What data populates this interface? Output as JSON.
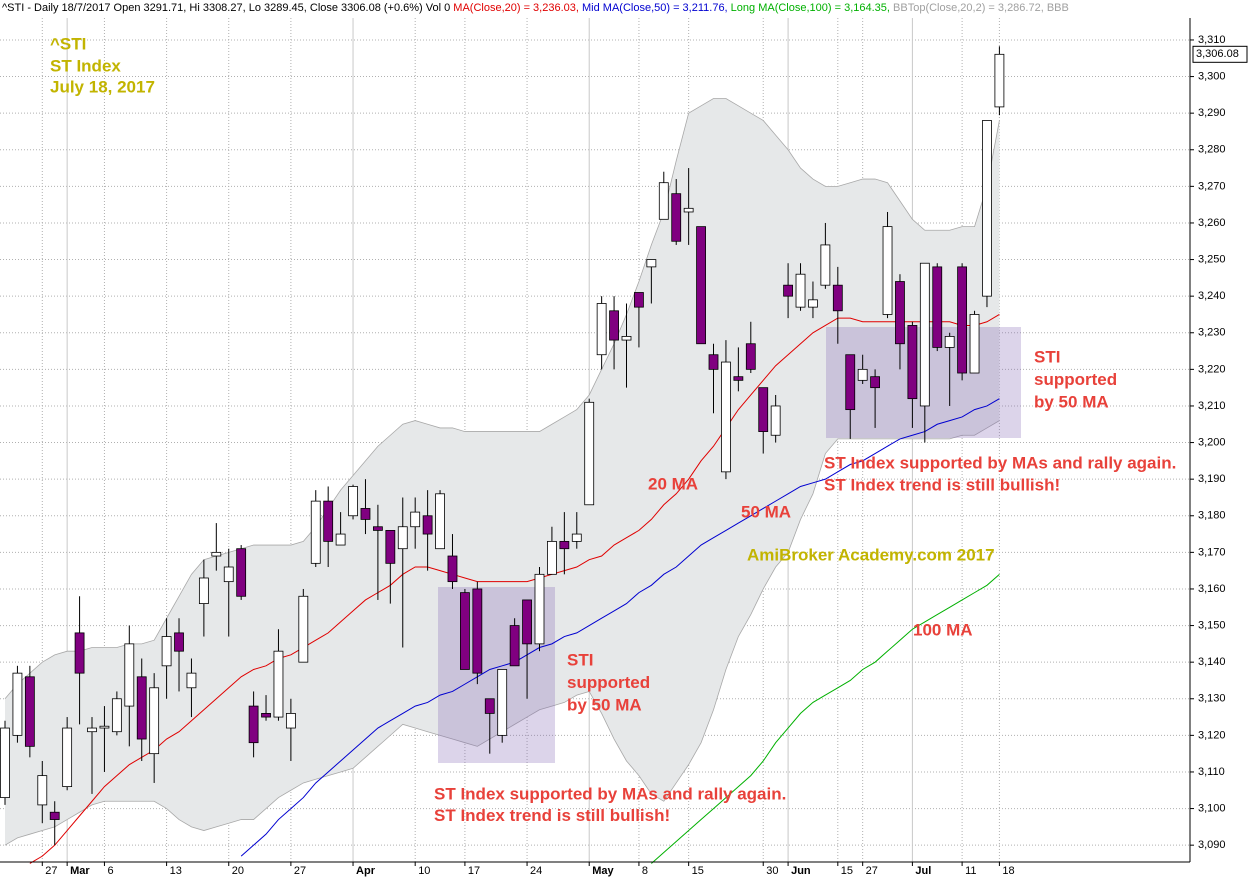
{
  "chart_data": {
    "type": "candlestick",
    "header": [
      {
        "text": "^STI - Daily 18/7/2017 Open 3291.71, Hi 3308.27, Lo 3289.45, Close 3306.08 (+0.6%) Vol 0 ",
        "color": "#000000"
      },
      {
        "text": "MA(Close,20) = 3,236.03, ",
        "color": "#e00000"
      },
      {
        "text": "Mid MA(Close,50) = 3,211.76, ",
        "color": "#0000d0"
      },
      {
        "text": "Long MA(Close,100) = 3,164.35, ",
        "color": "#00b000"
      },
      {
        "text": "BBTop(Close,20,2) = 3,286.72, BBB",
        "color": "#a0a0a0"
      }
    ],
    "title_lines": [
      "^STI",
      "ST Index",
      "July 18, 2017"
    ],
    "title_color": "#c2b400",
    "annotations": [
      {
        "lines": [
          "STI",
          "supported",
          "by 50 MA"
        ],
        "color": "#e8413a"
      },
      {
        "lines": [
          "STI",
          "supported",
          "by 50 MA"
        ],
        "color": "#e8413a"
      },
      {
        "lines": [
          "20 MA"
        ],
        "color": "#e8413a"
      },
      {
        "lines": [
          "50 MA"
        ],
        "color": "#e8413a"
      },
      {
        "lines": [
          "100 MA"
        ],
        "color": "#e8413a"
      },
      {
        "lines": [
          "ST Index supported by MAs and rally again.",
          "ST Index trend is still bullish!"
        ],
        "color": "#e8413a"
      },
      {
        "lines": [
          "ST Index supported by MAs and rally again.",
          "ST Index trend is still bullish!"
        ],
        "color": "#e8413a"
      },
      {
        "lines": [
          "AmiBroker Academy.com  2017"
        ],
        "color": "#c2b400"
      }
    ],
    "categories": [
      null,
      null,
      null,
      "27",
      null,
      "Mar",
      null,
      null,
      "6",
      null,
      null,
      null,
      null,
      "13",
      null,
      null,
      null,
      null,
      "20",
      null,
      null,
      null,
      null,
      "27",
      null,
      null,
      null,
      null,
      "Apr",
      null,
      null,
      null,
      null,
      "10",
      null,
      null,
      null,
      "17",
      null,
      null,
      null,
      null,
      "24",
      null,
      null,
      null,
      null,
      "May",
      null,
      null,
      null,
      "8",
      null,
      null,
      null,
      "15",
      null,
      null,
      null,
      null,
      null,
      "30",
      null,
      "Jun",
      null,
      null,
      null,
      "15",
      null,
      "27",
      null,
      null,
      null,
      "Jul",
      null,
      null,
      null,
      "11",
      null,
      null,
      "18"
    ],
    "open": [
      3103,
      3120,
      3136,
      3101,
      3099,
      3106,
      3148,
      3121,
      3122,
      3121,
      3128,
      3136,
      3115,
      3139,
      3148,
      3133,
      3156,
      3169,
      3162,
      3171,
      3128,
      3126,
      3125,
      3122,
      3140,
      3167,
      3184,
      3172,
      3180,
      3182,
      3177,
      3176,
      3171,
      3177,
      3180,
      3171,
      3169,
      3159,
      3160,
      3130,
      3120,
      3150,
      3157,
      3145,
      3164,
      3173,
      3173,
      3183,
      3224,
      3236,
      3228,
      3241,
      3248,
      3261,
      3268,
      3263,
      3259,
      3224,
      3192,
      3218,
      3227,
      3215,
      3202,
      3243,
      3237,
      3237,
      3243,
      3243,
      3224,
      3217,
      3218,
      3235,
      3244,
      3232,
      3210,
      3248,
      3226,
      3248,
      3219,
      3240,
      3291.71
    ],
    "high": [
      3124,
      3139,
      3139,
      3113,
      3102,
      3125,
      3158,
      3125,
      3128,
      3132,
      3150,
      3141,
      3137,
      3152,
      3152,
      3141,
      3168,
      3178,
      3171,
      3172,
      3132,
      3131,
      3149,
      3130,
      3160,
      3187,
      3188,
      3181,
      3188.5,
      3190,
      3183,
      3176,
      3185,
      3185,
      3187,
      3187,
      3175,
      3160,
      3162,
      3130,
      3138,
      3152,
      3157,
      3166,
      3177,
      3181,
      3181,
      3212,
      3240,
      3240,
      3238,
      3241,
      3250,
      3274,
      3272,
      3275,
      3259,
      3227,
      3228,
      3226,
      3233,
      3215,
      3213,
      3249,
      3249,
      3244,
      3260,
      3248,
      3224,
      3224,
      3220,
      3263,
      3246,
      3233,
      3249,
      3249,
      3230,
      3249,
      3236,
      3288,
      3308.27
    ],
    "low": [
      3101,
      3118,
      3114,
      3096,
      3090,
      3105,
      3123,
      3104,
      3110,
      3120,
      3117,
      3113,
      3107,
      3130,
      3132,
      3125,
      3147,
      3165,
      3147,
      3157,
      3114,
      3124,
      3124,
      3113,
      3140,
      3166,
      3166,
      3172,
      3179,
      3175,
      3157,
      3156,
      3144,
      3171,
      3165,
      3171,
      3160,
      3138,
      3134,
      3115,
      3118,
      3139,
      3130,
      3143,
      3164,
      3164,
      3171,
      3183,
      3220,
      3220,
      3215,
      3226,
      3238,
      3261,
      3254,
      3254,
      3227,
      3208,
      3190,
      3214,
      3219,
      3197,
      3200,
      3234,
      3236,
      3234,
      3242,
      3227,
      3201,
      3216,
      3204,
      3234,
      3220,
      3204,
      3200,
      3225,
      3210,
      3217,
      3219,
      3237,
      3289.45
    ],
    "close": [
      3122,
      3137,
      3117,
      3109,
      3097,
      3122,
      3137,
      3122,
      3122.5,
      3130,
      3145,
      3119,
      3133,
      3147,
      3143,
      3137,
      3163,
      3170,
      3166,
      3158,
      3118,
      3125,
      3143,
      3126,
      3158,
      3184,
      3173,
      3175,
      3188,
      3179,
      3176,
      3167,
      3177,
      3181,
      3175,
      3186,
      3162,
      3138,
      3137,
      3126,
      3138,
      3139,
      3145,
      3164,
      3173,
      3171,
      3175,
      3211,
      3238,
      3228,
      3229,
      3237,
      3250,
      3271,
      3255,
      3264,
      3227,
      3220,
      3222,
      3217,
      3220,
      3203,
      3210,
      3240,
      3246,
      3239,
      3254,
      3236,
      3209,
      3220,
      3215,
      3259,
      3227,
      3212,
      3249,
      3226,
      3229,
      3219,
      3235,
      3288,
      3306.08
    ],
    "last_close_label": "3,306.08",
    "up_color": "#ffffff",
    "down_color": "#800080",
    "band": {
      "color": "#e6e8e9",
      "edge_color": "#a8a8a8",
      "upper": [
        3130,
        3134,
        3137,
        3140,
        3142,
        3143,
        3143,
        3144,
        3144,
        3144,
        3145,
        3145,
        3146,
        3152,
        3158,
        3164,
        3168,
        3169,
        3170,
        3171,
        3172,
        3172,
        3172,
        3172,
        3173,
        3177,
        3182,
        3187,
        3191,
        3195,
        3199,
        3202,
        3205,
        3206,
        3205,
        3204,
        3204,
        3203,
        3203,
        3203,
        3203,
        3203,
        3203,
        3203,
        3205,
        3207,
        3209,
        3213,
        3220,
        3227,
        3235,
        3244,
        3254,
        3263,
        3277,
        3290,
        3292,
        3294,
        3294,
        3292,
        3290,
        3288,
        3284,
        3280,
        3275,
        3272,
        3270,
        3270,
        3271,
        3272,
        3272,
        3271,
        3266,
        3261,
        3258,
        3258,
        3258,
        3259,
        3259,
        3270,
        3288
      ],
      "lower": [
        3090,
        3092,
        3093,
        3094,
        3095,
        3097,
        3099,
        3101,
        3102,
        3102,
        3102,
        3102,
        3102,
        3100,
        3097,
        3095,
        3094,
        3095,
        3096,
        3097,
        3097,
        3100,
        3103,
        3105,
        3107,
        3108,
        3109,
        3110,
        3111,
        3114,
        3117,
        3120,
        3123,
        3122,
        3121,
        3120,
        3119,
        3118,
        3117,
        3119,
        3121,
        3123,
        3125,
        3127,
        3128,
        3129,
        3131,
        3132,
        3126,
        3119,
        3113,
        3109,
        3104,
        3102,
        3107,
        3112,
        3118,
        3127,
        3138,
        3147,
        3153,
        3160,
        3166,
        3170,
        3179,
        3186,
        3197,
        3201,
        3201,
        3201,
        3201,
        3201,
        3201,
        3201,
        3201,
        3201,
        3201,
        3202,
        3202,
        3204,
        3206
      ]
    },
    "series": [
      {
        "color": "#e00000",
        "values": [
          null,
          null,
          3085,
          3087,
          3090,
          3094,
          3098,
          3102,
          3106,
          3109,
          3112,
          3114,
          3116,
          3119,
          3121,
          3124,
          3127,
          3130,
          3133,
          3136,
          3138,
          3139,
          3141,
          3142,
          3144,
          3146,
          3148,
          3151,
          3154,
          3157,
          3159,
          3161,
          3164,
          3166,
          3166,
          3165,
          3164,
          3163,
          3162,
          3162,
          3162,
          3162,
          3162,
          3163,
          3164,
          3165,
          3166,
          3168,
          3169,
          3172,
          3174,
          3176,
          3179,
          3183,
          3186,
          3190,
          3195,
          3199,
          3204,
          3209,
          3213,
          3217,
          3221,
          3224,
          3227,
          3230,
          3232,
          3234,
          3234,
          3233,
          3233,
          3233,
          3233,
          3233,
          3233,
          3233,
          3233,
          3232,
          3232,
          3233,
          3235
        ]
      },
      {
        "color": "#0000d0",
        "values": [
          null,
          null,
          null,
          null,
          null,
          null,
          null,
          null,
          null,
          null,
          null,
          null,
          null,
          null,
          null,
          null,
          null,
          null,
          null,
          3087,
          3090,
          3093,
          3097,
          3100,
          3103,
          3107,
          3110,
          3113,
          3116,
          3119,
          3122,
          3124,
          3126,
          3128,
          3129,
          3131,
          3132,
          3134,
          3136,
          3138,
          3139,
          3140,
          3142,
          3144,
          3145,
          3147,
          3148,
          3150,
          3152,
          3154,
          3156,
          3159,
          3161,
          3164,
          3166,
          3169,
          3172,
          3174,
          3176,
          3178,
          3180,
          3182,
          3184,
          3186,
          3188,
          3189,
          3190,
          3192,
          3194,
          3195,
          3197,
          3199,
          3201,
          3202,
          3203,
          3205,
          3206,
          3207,
          3209,
          3210,
          3212
        ]
      },
      {
        "color": "#00b000",
        "values": [
          null,
          null,
          null,
          null,
          null,
          null,
          null,
          null,
          null,
          null,
          null,
          null,
          null,
          null,
          null,
          null,
          null,
          null,
          null,
          null,
          null,
          null,
          null,
          null,
          null,
          null,
          null,
          null,
          null,
          null,
          null,
          null,
          null,
          null,
          null,
          null,
          null,
          null,
          null,
          null,
          null,
          null,
          null,
          null,
          null,
          null,
          null,
          null,
          null,
          null,
          null,
          null,
          3085,
          3088,
          3091,
          3094,
          3097,
          3100,
          3103,
          3106,
          3109,
          3113,
          3118,
          3122,
          3126,
          3129,
          3131,
          3133,
          3135,
          3138,
          3140,
          3143,
          3146,
          3149,
          3151,
          3153,
          3155,
          3157,
          3159,
          3161,
          3164
        ]
      }
    ],
    "ylim": [
      3085.4,
      3316
    ],
    "yticks": [
      {
        "value": 3090,
        "label": "3,090"
      },
      {
        "value": 3100,
        "label": "3,100"
      },
      {
        "value": 3110,
        "label": "3,110"
      },
      {
        "value": 3120,
        "label": "3,120"
      },
      {
        "value": 3130,
        "label": "3,130"
      },
      {
        "value": 3140,
        "label": "3,140"
      },
      {
        "value": 3150,
        "label": "3,150"
      },
      {
        "value": 3160,
        "label": "3,160"
      },
      {
        "value": 3170,
        "label": "3,170"
      },
      {
        "value": 3180,
        "label": "3,180"
      },
      {
        "value": 3190,
        "label": "3,190"
      },
      {
        "value": 3200,
        "label": "3,200"
      },
      {
        "value": 3210,
        "label": "3,210"
      },
      {
        "value": 3220,
        "label": "3,220"
      },
      {
        "value": 3230,
        "label": "3,230"
      },
      {
        "value": 3240,
        "label": "3,240"
      },
      {
        "value": 3250,
        "label": "3,250"
      },
      {
        "value": 3260,
        "label": "3,260"
      },
      {
        "value": 3270,
        "label": "3,270"
      },
      {
        "value": 3280,
        "label": "3,280"
      },
      {
        "value": 3290,
        "label": "3,290"
      },
      {
        "value": 3300,
        "label": "3,300"
      },
      {
        "value": 3310,
        "label": "3,310"
      }
    ],
    "grid": true
  }
}
